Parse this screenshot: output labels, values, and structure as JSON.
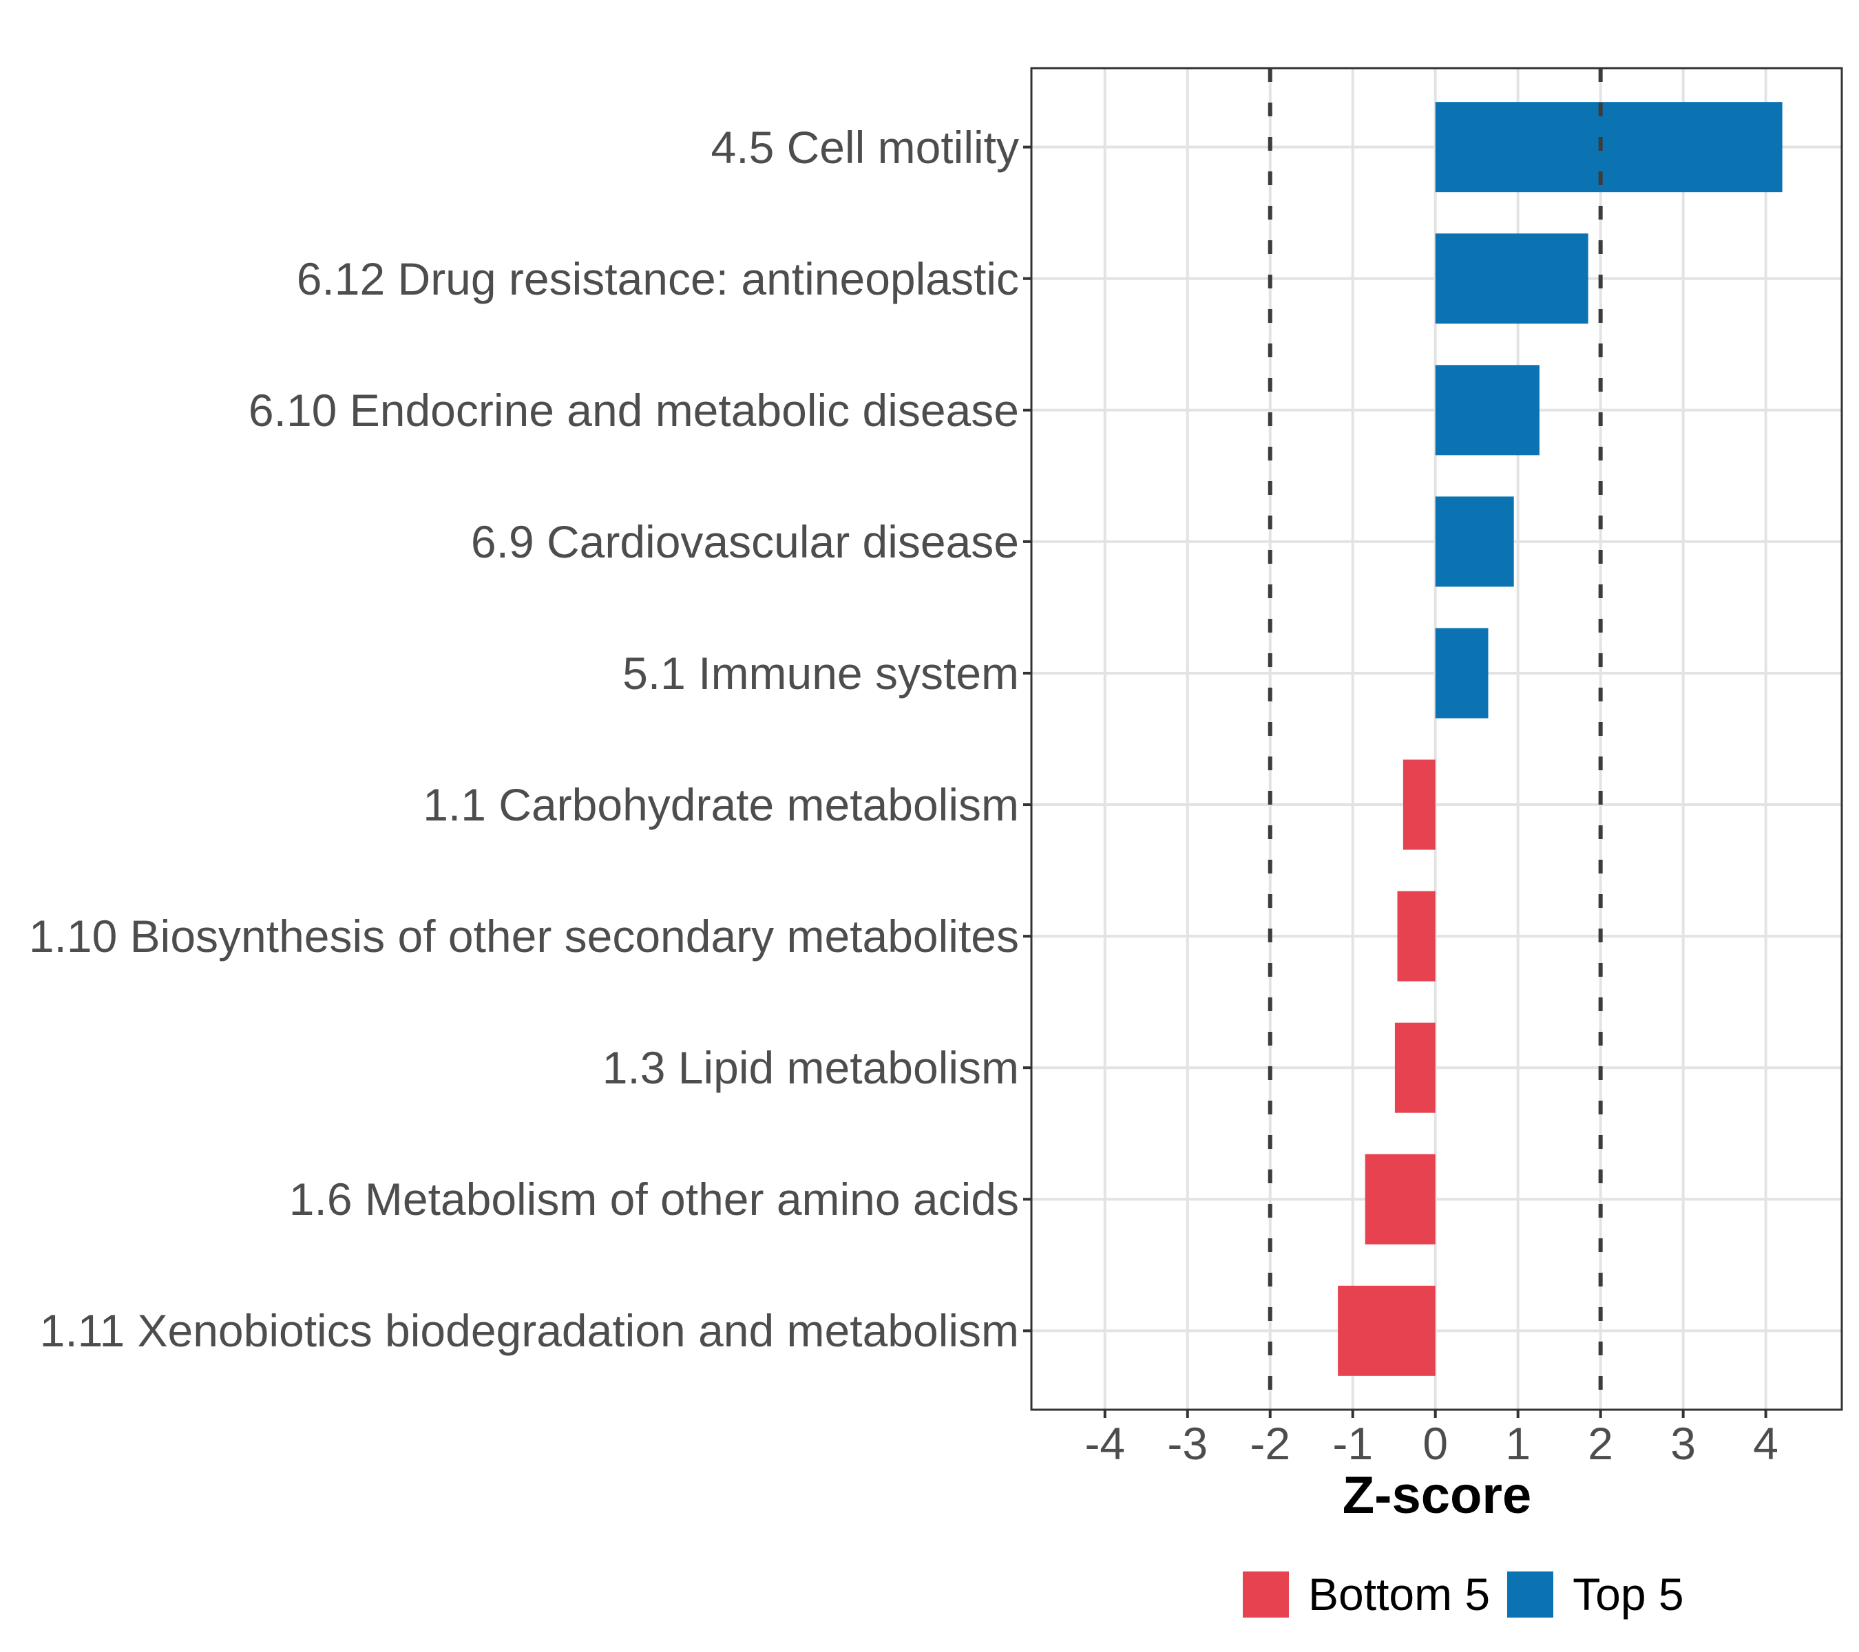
{
  "chart_data": {
    "type": "bar",
    "orientation": "horizontal",
    "title": "",
    "xlabel": "Z-score",
    "ylabel": "",
    "categories": [
      "4.5 Cell motility",
      "6.12 Drug resistance: antineoplastic",
      "6.10 Endocrine and metabolic disease",
      "6.9 Cardiovascular disease",
      "5.1 Immune system",
      "1.1 Carbohydrate metabolism",
      "1.10 Biosynthesis of other secondary metabolites",
      "1.3 Lipid metabolism",
      "1.6 Metabolism of other amino acids",
      "1.11 Xenobiotics biodegradation and metabolism"
    ],
    "values": [
      4.2,
      1.85,
      1.26,
      0.95,
      0.64,
      -0.39,
      -0.46,
      -0.49,
      -0.85,
      -1.18
    ],
    "groups": [
      "Top 5",
      "Top 5",
      "Top 5",
      "Top 5",
      "Top 5",
      "Bottom 5",
      "Bottom 5",
      "Bottom 5",
      "Bottom 5",
      "Bottom 5"
    ],
    "x_ticks": [
      -4,
      -3,
      -2,
      -1,
      0,
      1,
      2,
      3,
      4
    ],
    "xlim": [
      -4.89,
      4.92
    ],
    "reference_lines": [
      -2,
      2
    ],
    "grid": "major",
    "legend_position": "bottom",
    "colors": {
      "top5": "#0B73B1",
      "bottom5": "#E74250",
      "grid": "#E3E3E3",
      "panel_border": "#333333",
      "axis_text": "#4D4D4D",
      "reference_line": "#3C3C3C",
      "background": "#FFFFFF"
    }
  },
  "legend": {
    "items": [
      {
        "label": "Bottom 5",
        "color": "#E74250"
      },
      {
        "label": "Top 5",
        "color": "#0B73B1"
      }
    ]
  }
}
